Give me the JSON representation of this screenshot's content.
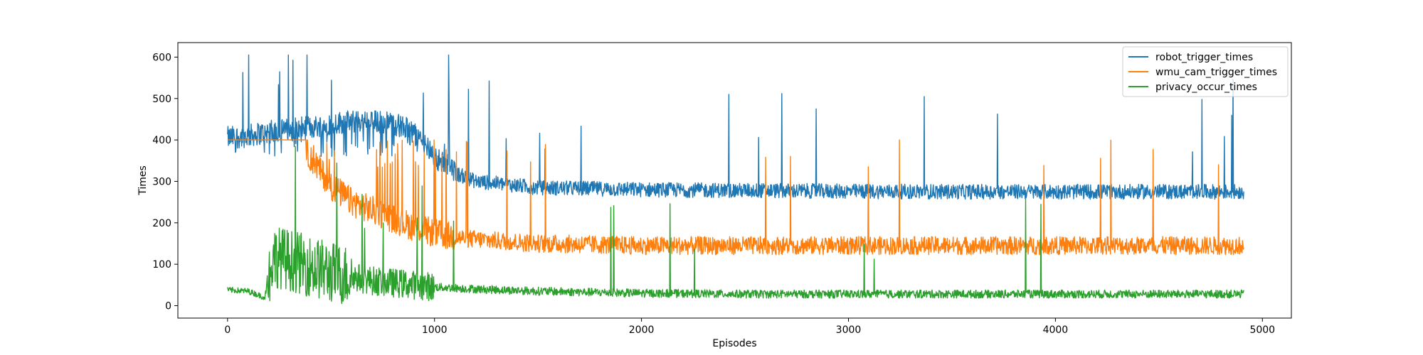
{
  "chart_data": {
    "type": "line",
    "xlabel": "Episodes",
    "ylabel": "Times",
    "xlim": [
      -240,
      5140
    ],
    "ylim": [
      -30,
      635
    ],
    "xticks": [
      0,
      1000,
      2000,
      3000,
      4000,
      5000
    ],
    "yticks": [
      0,
      100,
      200,
      300,
      400,
      500,
      600
    ],
    "grid": false,
    "legend_position": "top-right",
    "series": [
      {
        "name": "robot_trigger_times",
        "color": "#1f77b4",
        "approx_trend": {
          "x": [
            0,
            100,
            200,
            300,
            400,
            500,
            600,
            700,
            800,
            900,
            1000,
            1100,
            1200,
            1500,
            2000,
            2500,
            3000,
            3500,
            4000,
            4500,
            4910
          ],
          "y": [
            405,
            410,
            420,
            425,
            430,
            440,
            445,
            445,
            440,
            420,
            360,
            320,
            300,
            285,
            280,
            278,
            276,
            275,
            275,
            275,
            275
          ]
        }
      },
      {
        "name": "wmu_cam_trigger_times",
        "color": "#ff7f0e",
        "approx_trend": {
          "x": [
            0,
            100,
            200,
            300,
            400,
            500,
            600,
            700,
            800,
            900,
            1000,
            1100,
            1200,
            1500,
            2000,
            2500,
            3000,
            3500,
            4000,
            4500,
            4910
          ],
          "y": [
            400,
            400,
            400,
            400,
            360,
            290,
            250,
            230,
            210,
            190,
            175,
            165,
            160,
            150,
            145,
            145,
            145,
            145,
            145,
            145,
            145
          ]
        }
      },
      {
        "name": "privacy_occur_times",
        "color": "#2ca02c",
        "approx_trend": {
          "x": [
            0,
            100,
            180,
            220,
            300,
            400,
            500,
            600,
            700,
            800,
            900,
            1000,
            1200,
            1500,
            2000,
            2500,
            3000,
            3500,
            4000,
            4500,
            4910
          ],
          "y": [
            38,
            35,
            20,
            120,
            110,
            95,
            80,
            70,
            60,
            55,
            50,
            45,
            40,
            35,
            30,
            28,
            28,
            28,
            28,
            28,
            28
          ]
        }
      }
    ]
  }
}
